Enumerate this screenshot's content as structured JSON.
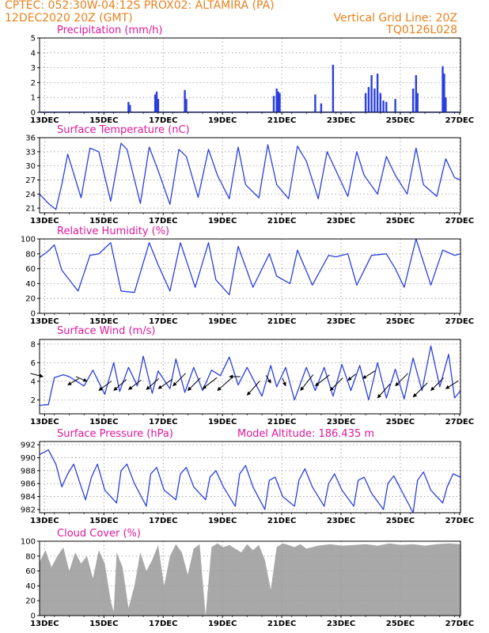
{
  "header": {
    "line1_left": "CPTEC:   052:30W-04:12S   PROX02: ALTAMIRA (PA)",
    "line2_left": "12DEC2020 20Z (GMT)",
    "line2_right": "Vertical Grid Line: 20Z",
    "line3_right": "TQ0126L028"
  },
  "colors": {
    "header_text": "#e8811c",
    "panel_title": "#e0189a",
    "series_line": "#2b3fe0",
    "cloud_fill": "#a8a8a8",
    "grid": "#9a9a9a"
  },
  "x_axis": {
    "start": "12DEC 20Z",
    "days": 14.2,
    "tick_day_offsets": [
      0.17,
      2.17,
      4.17,
      6.17,
      8.17,
      10.17,
      12.17,
      14.17
    ],
    "tick_labels": [
      "13DEC",
      "15DEC",
      "17DEC",
      "19DEC",
      "21DEC",
      "23DEC",
      "25DEC",
      "27DEC"
    ]
  },
  "chart_data": [
    {
      "type": "bar",
      "title": "Precipitation (mm/h)",
      "ylim": [
        0,
        5
      ],
      "yticks": [
        0,
        1,
        2,
        3,
        4,
        5
      ],
      "grid": true,
      "events": [
        {
          "x": 3.0,
          "y": 0.7
        },
        {
          "x": 3.05,
          "y": 0.5
        },
        {
          "x": 3.9,
          "y": 1.2
        },
        {
          "x": 3.95,
          "y": 1.4
        },
        {
          "x": 4.0,
          "y": 0.9
        },
        {
          "x": 4.9,
          "y": 1.5
        },
        {
          "x": 4.95,
          "y": 0.9
        },
        {
          "x": 7.9,
          "y": 1.1
        },
        {
          "x": 8.0,
          "y": 1.6
        },
        {
          "x": 8.05,
          "y": 1.4
        },
        {
          "x": 8.1,
          "y": 1.3
        },
        {
          "x": 9.3,
          "y": 1.2
        },
        {
          "x": 9.5,
          "y": 0.6
        },
        {
          "x": 9.9,
          "y": 3.2
        },
        {
          "x": 11.0,
          "y": 1.3
        },
        {
          "x": 11.1,
          "y": 1.7
        },
        {
          "x": 11.2,
          "y": 2.5
        },
        {
          "x": 11.3,
          "y": 1.6
        },
        {
          "x": 11.4,
          "y": 2.6
        },
        {
          "x": 11.5,
          "y": 1.3
        },
        {
          "x": 11.6,
          "y": 0.8
        },
        {
          "x": 11.7,
          "y": 0.7
        },
        {
          "x": 12.0,
          "y": 0.9
        },
        {
          "x": 12.6,
          "y": 1.6
        },
        {
          "x": 12.7,
          "y": 2.5
        },
        {
          "x": 12.75,
          "y": 1.3
        },
        {
          "x": 13.6,
          "y": 3.1
        },
        {
          "x": 13.65,
          "y": 2.6
        },
        {
          "x": 13.7,
          "y": 1.0
        }
      ]
    },
    {
      "type": "line",
      "title": "Surface Temperature (nC)",
      "ylim": [
        20,
        36
      ],
      "yticks": [
        21,
        24,
        27,
        30,
        33,
        36
      ],
      "grid": true,
      "x": [
        0,
        0.3,
        0.55,
        0.75,
        0.95,
        1.4,
        1.7,
        2.0,
        2.4,
        2.75,
        2.95,
        3.4,
        3.7,
        4.0,
        4.4,
        4.7,
        4.95,
        5.35,
        5.7,
        6.0,
        6.4,
        6.7,
        6.95,
        7.4,
        7.7,
        8.0,
        8.4,
        8.7,
        9.0,
        9.4,
        9.7,
        10.0,
        10.4,
        10.7,
        10.95,
        11.4,
        11.7,
        12.0,
        12.4,
        12.7,
        12.95,
        13.4,
        13.7,
        14.0,
        14.2
      ],
      "values": [
        24.0,
        22.0,
        20.7,
        26.0,
        32.5,
        23.2,
        33.8,
        33.0,
        22.5,
        34.8,
        33.5,
        22.0,
        34.0,
        29.0,
        21.8,
        33.5,
        32.0,
        23.3,
        33.5,
        28.0,
        23.0,
        34.0,
        26.0,
        23.2,
        34.5,
        26.0,
        23.0,
        34.2,
        31.0,
        23.0,
        33.0,
        29.0,
        23.5,
        33.0,
        28.0,
        24.0,
        32.0,
        28.0,
        24.0,
        33.8,
        26.0,
        23.5,
        31.5,
        27.5,
        27.0
      ]
    },
    {
      "type": "line",
      "title": "Relative Humidity (%)",
      "ylim": [
        0,
        100
      ],
      "yticks": [
        0,
        20,
        40,
        60,
        80,
        100
      ],
      "grid": true,
      "x": [
        0,
        0.3,
        0.5,
        0.75,
        1.3,
        1.7,
        2.0,
        2.4,
        2.75,
        3.2,
        3.7,
        4.0,
        4.4,
        4.75,
        5.25,
        5.7,
        5.95,
        6.4,
        6.7,
        7.2,
        7.75,
        8.0,
        8.45,
        8.7,
        9.2,
        9.75,
        10.0,
        10.4,
        10.7,
        11.2,
        11.7,
        12.0,
        12.3,
        12.7,
        13.2,
        13.6,
        14.0,
        14.2
      ],
      "values": [
        75,
        84,
        92,
        58,
        30,
        78,
        80,
        95,
        30,
        28,
        95,
        65,
        30,
        95,
        35,
        95,
        45,
        25,
        90,
        35,
        80,
        50,
        40,
        85,
        38,
        78,
        76,
        80,
        38,
        78,
        80,
        60,
        35,
        100,
        38,
        85,
        78,
        80
      ]
    },
    {
      "type": "line",
      "title": "Surface Wind (m/s)",
      "ylim": [
        0.5,
        8.5
      ],
      "yticks": [
        2,
        4,
        6,
        8
      ],
      "grid": true,
      "x": [
        0,
        0.3,
        0.5,
        0.8,
        1.0,
        1.5,
        1.8,
        2.2,
        2.5,
        2.7,
        3.0,
        3.3,
        3.5,
        3.8,
        4.0,
        4.4,
        4.6,
        4.9,
        5.2,
        5.5,
        5.8,
        6.1,
        6.4,
        6.7,
        7.0,
        7.5,
        7.8,
        8.0,
        8.3,
        8.6,
        9.0,
        9.3,
        9.6,
        9.9,
        10.2,
        10.5,
        10.8,
        11.1,
        11.4,
        11.7,
        12.0,
        12.3,
        12.6,
        12.9,
        13.2,
        13.5,
        13.8,
        14.0,
        14.2
      ],
      "values": [
        1.4,
        1.5,
        4.4,
        4.7,
        4.5,
        3.5,
        5.2,
        2.6,
        6.0,
        2.9,
        5.5,
        3.5,
        6.7,
        2.7,
        5.1,
        3.2,
        6.4,
        2.8,
        5.5,
        3.0,
        5.2,
        4.6,
        6.6,
        3.6,
        5.5,
        2.4,
        5.7,
        3.4,
        5.5,
        2.0,
        5.5,
        3.0,
        5.5,
        2.4,
        5.8,
        3.0,
        5.7,
        2.0,
        6.0,
        2.2,
        5.3,
        2.1,
        6.5,
        3.0,
        7.8,
        3.4,
        6.9,
        2.2,
        3.0
      ],
      "wind_barbs": [
        {
          "x": 0.12,
          "y": 4.5,
          "dx": -16,
          "dy": -4
        },
        {
          "x": 0.95,
          "y": 3.6,
          "dx": 14,
          "dy": -8
        },
        {
          "x": 1.6,
          "y": 4.0,
          "dx": -14,
          "dy": -6
        },
        {
          "x": 2.0,
          "y": 3.0,
          "dx": 16,
          "dy": -12
        },
        {
          "x": 2.5,
          "y": 3.0,
          "dx": 16,
          "dy": -14
        },
        {
          "x": 3.0,
          "y": 3.1,
          "dx": 16,
          "dy": -12
        },
        {
          "x": 3.6,
          "y": 3.1,
          "dx": 16,
          "dy": -14
        },
        {
          "x": 4.0,
          "y": 3.2,
          "dx": 18,
          "dy": -12
        },
        {
          "x": 4.5,
          "y": 3.5,
          "dx": 16,
          "dy": -16
        },
        {
          "x": 5.0,
          "y": 3.0,
          "dx": 16,
          "dy": -16
        },
        {
          "x": 5.5,
          "y": 3.2,
          "dx": 18,
          "dy": -14
        },
        {
          "x": 6.0,
          "y": 3.0,
          "dx": 18,
          "dy": -16
        },
        {
          "x": 6.4,
          "y": 4.5,
          "dx": 14,
          "dy": 0
        },
        {
          "x": 7.0,
          "y": 2.5,
          "dx": 16,
          "dy": -18
        },
        {
          "x": 7.8,
          "y": 3.8,
          "dx": -6,
          "dy": -10
        },
        {
          "x": 8.3,
          "y": 3.5,
          "dx": -4,
          "dy": -10
        },
        {
          "x": 8.8,
          "y": 3.0,
          "dx": 16,
          "dy": -20
        },
        {
          "x": 9.3,
          "y": 3.5,
          "dx": 18,
          "dy": -14
        },
        {
          "x": 9.8,
          "y": 3.0,
          "dx": 16,
          "dy": -16
        },
        {
          "x": 10.4,
          "y": 4.1,
          "dx": 10,
          "dy": -8
        },
        {
          "x": 10.9,
          "y": 4.3,
          "dx": 16,
          "dy": -10
        },
        {
          "x": 11.4,
          "y": 2.2,
          "dx": 16,
          "dy": -18
        },
        {
          "x": 12.0,
          "y": 3.5,
          "dx": 16,
          "dy": -16
        },
        {
          "x": 12.6,
          "y": 2.3,
          "dx": 18,
          "dy": -18
        },
        {
          "x": 13.2,
          "y": 3.0,
          "dx": 16,
          "dy": -16
        },
        {
          "x": 13.7,
          "y": 3.2,
          "dx": 16,
          "dy": -10
        }
      ]
    },
    {
      "type": "line",
      "title": "Surface Pressure (hPa)",
      "subtitle": "Model Altitude: 186.435 m",
      "ylim": [
        981.5,
        992.5
      ],
      "yticks": [
        982,
        984,
        986,
        988,
        990,
        992
      ],
      "grid": true,
      "x": [
        0,
        0.3,
        0.55,
        0.75,
        0.95,
        1.15,
        1.55,
        1.75,
        1.95,
        2.2,
        2.6,
        2.75,
        2.95,
        3.2,
        3.6,
        3.75,
        3.95,
        4.2,
        4.6,
        4.75,
        4.95,
        5.2,
        5.6,
        5.75,
        5.95,
        6.2,
        6.6,
        6.75,
        6.95,
        7.2,
        7.6,
        7.75,
        7.95,
        8.2,
        8.6,
        8.75,
        8.95,
        9.2,
        9.6,
        9.75,
        9.95,
        10.2,
        10.6,
        10.75,
        10.95,
        11.2,
        11.6,
        11.75,
        11.95,
        12.2,
        12.6,
        12.75,
        12.95,
        13.2,
        13.6,
        13.75,
        13.95,
        14.2
      ],
      "values": [
        990.5,
        991.2,
        989.0,
        985.5,
        987.5,
        989.0,
        983.5,
        987.0,
        989.0,
        985.0,
        983.0,
        988.0,
        989.0,
        986.0,
        982.5,
        987.5,
        988.5,
        985.0,
        983.5,
        987.5,
        988.5,
        985.5,
        983.5,
        987.0,
        988.0,
        985.5,
        982.5,
        987.5,
        988.8,
        985.5,
        982.0,
        986.5,
        987.0,
        984.0,
        982.5,
        986.5,
        988.3,
        985.5,
        982.5,
        986.0,
        987.5,
        985.0,
        982.5,
        986.5,
        987.0,
        984.5,
        982.0,
        986.0,
        987.2,
        985.0,
        981.5,
        986.5,
        987.8,
        985.0,
        983.0,
        985.5,
        987.5,
        987.0
      ]
    },
    {
      "type": "area",
      "title": "Cloud Cover (%)",
      "ylim": [
        0,
        100
      ],
      "yticks": [
        0,
        20,
        40,
        60,
        80,
        100
      ],
      "grid": true,
      "x": [
        0,
        0.2,
        0.4,
        0.6,
        0.8,
        1.0,
        1.2,
        1.4,
        1.6,
        1.8,
        2.0,
        2.2,
        2.4,
        2.5,
        2.6,
        2.8,
        3.0,
        3.2,
        3.4,
        3.6,
        3.8,
        4.0,
        4.2,
        4.4,
        4.6,
        4.8,
        5.0,
        5.2,
        5.4,
        5.6,
        5.8,
        6.0,
        6.2,
        6.4,
        6.6,
        6.8,
        7.0,
        7.2,
        7.4,
        7.6,
        7.8,
        8.0,
        8.2,
        8.4,
        8.6,
        8.8,
        9.0,
        9.4,
        9.8,
        10.2,
        10.6,
        11.0,
        11.4,
        11.8,
        12.2,
        12.6,
        13.0,
        13.4,
        13.8,
        14.2
      ],
      "values": [
        72,
        88,
        65,
        80,
        92,
        60,
        85,
        70,
        80,
        50,
        88,
        70,
        20,
        5,
        85,
        65,
        10,
        40,
        85,
        60,
        75,
        95,
        40,
        80,
        96,
        85,
        55,
        90,
        96,
        0,
        92,
        97,
        92,
        95,
        90,
        85,
        96,
        88,
        95,
        75,
        35,
        92,
        97,
        95,
        92,
        96,
        90,
        94,
        96,
        94,
        95,
        96,
        94,
        97,
        95,
        96,
        94,
        96,
        97,
        96
      ]
    }
  ]
}
